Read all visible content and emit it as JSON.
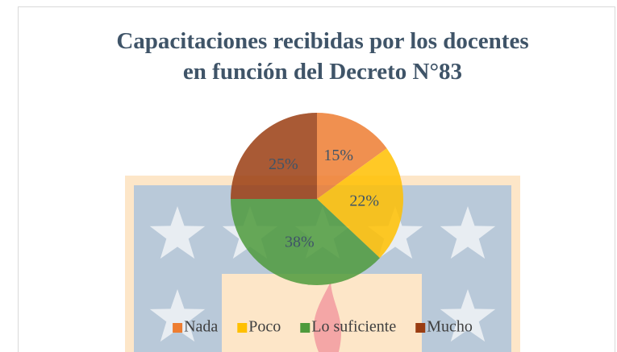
{
  "chart_data": {
    "type": "pie",
    "title": [
      "Capacitaciones recibidas por los docentes",
      "en función del Decreto N°83"
    ],
    "categories": [
      "Nada",
      "Poco",
      "Lo suficiente",
      "Mucho"
    ],
    "values": [
      15,
      22,
      38,
      25
    ],
    "value_labels": [
      "15%",
      "22%",
      "38%",
      "25%"
    ],
    "colors": [
      "#ed7d31",
      "#ffc000",
      "#4e9a3c",
      "#9a3d12"
    ],
    "legend": "bottom"
  }
}
